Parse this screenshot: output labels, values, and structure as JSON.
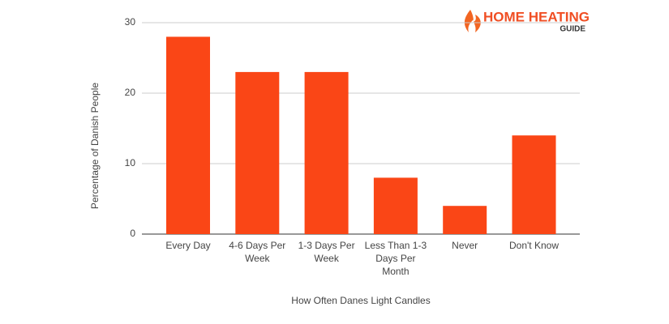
{
  "chart_data": {
    "type": "bar",
    "logo": {
      "title": "HOME HEATING",
      "subtitle": "GUIDE"
    },
    "xlabel": "How Often Danes Light Candles",
    "ylabel": "Percentage of Danish People",
    "categories": [
      "Every Day",
      "4-6 Days Per Week",
      "1-3 Days Per Week",
      "Less Than 1-3 Days Per Month",
      "Never",
      "Don't Know"
    ],
    "values": [
      28,
      23,
      23,
      8,
      4,
      14
    ],
    "color": "#fa4616",
    "ylim": [
      0,
      30
    ],
    "yticks": [
      0,
      10,
      20,
      30
    ],
    "grid": true
  }
}
